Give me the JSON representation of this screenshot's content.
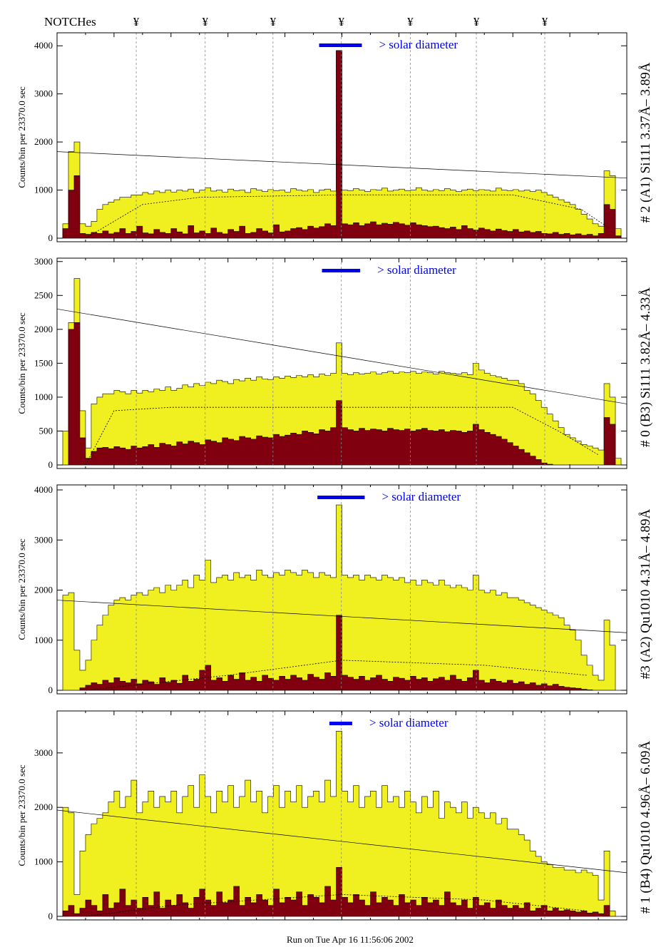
{
  "header": {
    "notches_label": "NOTCHes",
    "notch_symbol": "¥",
    "notch_count": 7
  },
  "footer": {
    "run_text": "Run on Tue Apr 16 11:56:06 2002"
  },
  "colors": {
    "total": "#f0f020",
    "signal": "#800010",
    "solar_bar": "#0000ee",
    "notch_line": "#888888"
  },
  "chart_data": [
    {
      "type": "bar",
      "title": "# 2 (A1) Si111  3.37Å– 3.89Å",
      "ylabel": "Counts/bin per  23370.0 sec",
      "ylim": [
        0,
        4270
      ],
      "yticks": [
        0,
        1000,
        2000,
        3000,
        4000
      ],
      "yticklabels": [
        "0",
        "1000",
        "2000",
        "3000",
        "4000"
      ],
      "solar_label": "> solar diameter",
      "solar_bar_bins": [
        46,
        53.5
      ],
      "notch_bins": [
        13.9,
        26,
        37.9,
        49.9,
        62,
        73.6,
        85.6
      ],
      "trend_line": [
        1800,
        1250
      ],
      "dotted_curve": [
        [
          5,
          0
        ],
        [
          15,
          700
        ],
        [
          25,
          850
        ],
        [
          50,
          900
        ],
        [
          80,
          900
        ],
        [
          92,
          600
        ],
        [
          97,
          200
        ]
      ],
      "series": [
        {
          "name": "total",
          "values": [
            0,
            300,
            1800,
            2000,
            300,
            250,
            350,
            600,
            700,
            750,
            800,
            850,
            850,
            900,
            900,
            950,
            920,
            980,
            950,
            1000,
            960,
            1000,
            980,
            1020,
            950,
            1000,
            1050,
            980,
            1000,
            960,
            1020,
            990,
            1000,
            950,
            1030,
            1000,
            970,
            1010,
            990,
            1000,
            960,
            1030,
            1000,
            980,
            1010,
            950,
            1000,
            1020,
            980,
            3900,
            1000,
            990,
            1030,
            1000,
            970,
            1010,
            1000,
            1040,
            980,
            1000,
            1020,
            990,
            1000,
            1050,
            1000,
            980,
            1010,
            990,
            1030,
            1000,
            970,
            1000,
            1020,
            990,
            1010,
            1000,
            980,
            1040,
            1000,
            990,
            1010,
            980,
            1000,
            970,
            1000,
            950,
            900,
            850,
            800,
            750,
            700,
            600,
            500,
            400,
            300,
            250,
            1400,
            1300,
            200,
            0
          ]
        },
        {
          "name": "signal",
          "values": [
            0,
            200,
            1000,
            1300,
            100,
            80,
            120,
            100,
            150,
            90,
            120,
            200,
            100,
            140,
            250,
            110,
            90,
            180,
            120,
            100,
            200,
            130,
            90,
            260,
            110,
            150,
            100,
            210,
            120,
            90,
            180,
            140,
            250,
            100,
            120,
            200,
            150,
            110,
            280,
            130,
            150,
            200,
            220,
            180,
            250,
            210,
            240,
            300,
            260,
            3900,
            300,
            280,
            320,
            260,
            300,
            340,
            280,
            310,
            290,
            330,
            300,
            270,
            320,
            280,
            260,
            240,
            250,
            220,
            200,
            230,
            180,
            260,
            200,
            170,
            210,
            180,
            150,
            190,
            160,
            140,
            180,
            130,
            150,
            120,
            140,
            100,
            90,
            120,
            80,
            100,
            70,
            90,
            60,
            80,
            50,
            100,
            700,
            600,
            50,
            0
          ]
        }
      ]
    },
    {
      "type": "bar",
      "title": "# 0 (B3) Si111  3.82Å– 4.33Å",
      "ylabel": "Counts/bin per  23370.0 sec",
      "ylim": [
        0,
        3050
      ],
      "yticks": [
        0,
        500,
        1000,
        1500,
        2000,
        2500,
        3000
      ],
      "yticklabels": [
        "0",
        "500",
        "1000",
        "1500",
        "2000",
        "2500",
        "3000"
      ],
      "solar_label": "> solar diameter",
      "solar_bar_bins": [
        46.5,
        53.2
      ],
      "notch_bins": [
        13.9,
        26,
        37.9,
        49.9,
        62,
        73.6,
        85.6
      ],
      "trend_line": [
        2300,
        900
      ],
      "dotted_curve": [
        [
          5,
          0
        ],
        [
          10,
          800
        ],
        [
          20,
          850
        ],
        [
          80,
          850
        ],
        [
          88,
          500
        ],
        [
          95,
          150
        ]
      ],
      "series": [
        {
          "name": "total",
          "values": [
            0,
            500,
            2100,
            2750,
            800,
            250,
            900,
            1000,
            1050,
            1050,
            1100,
            1080,
            1050,
            1100,
            1060,
            1100,
            1080,
            1120,
            1100,
            1150,
            1100,
            1130,
            1180,
            1150,
            1200,
            1170,
            1220,
            1200,
            1250,
            1230,
            1200,
            1260,
            1240,
            1280,
            1250,
            1300,
            1270,
            1260,
            1300,
            1280,
            1310,
            1290,
            1320,
            1300,
            1330,
            1300,
            1340,
            1320,
            1350,
            1800,
            1350,
            1330,
            1360,
            1340,
            1350,
            1370,
            1340,
            1360,
            1380,
            1350,
            1370,
            1360,
            1380,
            1350,
            1370,
            1360,
            1340,
            1380,
            1360,
            1350,
            1340,
            1360,
            1330,
            1500,
            1400,
            1350,
            1320,
            1300,
            1280,
            1250,
            1250,
            1200,
            1100,
            1050,
            950,
            850,
            750,
            650,
            550,
            450,
            400,
            350,
            300,
            280,
            250,
            220,
            1200,
            1000,
            100,
            0
          ]
        },
        {
          "name": "signal",
          "values": [
            0,
            0,
            2000,
            2100,
            400,
            100,
            200,
            250,
            260,
            240,
            270,
            250,
            230,
            280,
            250,
            270,
            300,
            260,
            320,
            300,
            280,
            340,
            310,
            350,
            330,
            300,
            370,
            350,
            330,
            400,
            380,
            360,
            420,
            400,
            380,
            430,
            410,
            400,
            450,
            420,
            440,
            470,
            450,
            500,
            480,
            460,
            520,
            500,
            550,
            950,
            550,
            520,
            500,
            540,
            510,
            530,
            520,
            500,
            540,
            520,
            510,
            530,
            500,
            520,
            540,
            510,
            500,
            520,
            490,
            510,
            500,
            480,
            500,
            600,
            520,
            480,
            450,
            420,
            380,
            330,
            280,
            230,
            180,
            130,
            80,
            30,
            10,
            0,
            0,
            0,
            0,
            0,
            0,
            0,
            0,
            0,
            700,
            600,
            0,
            0
          ]
        }
      ]
    },
    {
      "type": "bar",
      "title": "#3 (A2) Qu1010  4.31Å– 4.89Å",
      "ylabel": "Counts/bin per  23370.0 sec",
      "ylim": [
        0,
        4100
      ],
      "yticks": [
        0,
        1000,
        2000,
        3000,
        4000
      ],
      "yticklabels": [
        "0",
        "1000",
        "2000",
        "3000",
        "4000"
      ],
      "solar_label": "> solar diameter",
      "solar_bar_bins": [
        45.7,
        54
      ],
      "notch_bins": [
        13.9,
        26,
        37.9,
        49.9,
        62,
        73.6,
        85.6
      ],
      "trend_line": [
        1800,
        1150
      ],
      "dotted_curve": [
        [
          5,
          0
        ],
        [
          30,
          300
        ],
        [
          50,
          600
        ],
        [
          75,
          500
        ],
        [
          93,
          300
        ]
      ],
      "series": [
        {
          "name": "total",
          "values": [
            0,
            1900,
            1950,
            800,
            400,
            600,
            1000,
            1300,
            1500,
            1700,
            1800,
            1850,
            1800,
            1900,
            1950,
            1900,
            2000,
            2050,
            1950,
            2100,
            2000,
            2100,
            2200,
            2050,
            2300,
            2200,
            2600,
            2150,
            2250,
            2300,
            2200,
            2350,
            2250,
            2300,
            2200,
            2400,
            2300,
            2250,
            2350,
            2300,
            2400,
            2350,
            2300,
            2400,
            2350,
            2250,
            2350,
            2300,
            2250,
            3700,
            2300,
            2250,
            2300,
            2200,
            2300,
            2250,
            2200,
            2300,
            2250,
            2200,
            2250,
            2150,
            2200,
            2100,
            2200,
            2150,
            2100,
            2200,
            2100,
            2050,
            2100,
            2050,
            2000,
            2300,
            2000,
            1950,
            2000,
            1900,
            1950,
            1850,
            1850,
            1800,
            1750,
            1700,
            1650,
            1600,
            1550,
            1500,
            1450,
            1300,
            1200,
            1000,
            700,
            500,
            300,
            200,
            1400,
            900,
            0,
            0
          ]
        },
        {
          "name": "signal",
          "values": [
            0,
            0,
            0,
            0,
            50,
            100,
            150,
            120,
            200,
            150,
            250,
            180,
            150,
            220,
            130,
            200,
            170,
            120,
            250,
            160,
            200,
            140,
            300,
            180,
            220,
            400,
            500,
            200,
            250,
            180,
            300,
            220,
            350,
            200,
            260,
            180,
            300,
            240,
            200,
            280,
            220,
            300,
            250,
            200,
            320,
            260,
            220,
            350,
            280,
            1500,
            300,
            260,
            220,
            280,
            200,
            250,
            300,
            220,
            180,
            260,
            240,
            200,
            280,
            220,
            250,
            180,
            230,
            260,
            200,
            300,
            220,
            180,
            250,
            400,
            200,
            150,
            220,
            180,
            150,
            200,
            140,
            170,
            120,
            150,
            100,
            130,
            90,
            120,
            80,
            60,
            50,
            40,
            20,
            10,
            0,
            0,
            0,
            0,
            0,
            0
          ]
        }
      ]
    },
    {
      "type": "bar",
      "title": "# 1 (B4) Qu1010 4.96Å– 6.09Å",
      "ylabel": "Counts/bin per  23370.0 sec",
      "ylim": [
        0,
        3770
      ],
      "yticks": [
        0,
        1000,
        2000,
        3000
      ],
      "yticklabels": [
        "0",
        "1000",
        "2000",
        "3000"
      ],
      "solar_label": "> solar diameter",
      "solar_bar_bins": [
        47.8,
        51.8
      ],
      "notch_bins": [
        13.9,
        26,
        37.9,
        49.9,
        62,
        73.6,
        85.6
      ],
      "trend_line": [
        1950,
        800
      ],
      "dotted_curve": [
        [
          5,
          0
        ],
        [
          20,
          200
        ],
        [
          50,
          400
        ],
        [
          75,
          300
        ],
        [
          93,
          100
        ]
      ],
      "series": [
        {
          "name": "total",
          "values": [
            0,
            2000,
            1900,
            400,
            1200,
            1500,
            1700,
            1800,
            1900,
            2100,
            2300,
            2000,
            2200,
            2500,
            1900,
            2100,
            2300,
            2000,
            2200,
            2100,
            2300,
            1900,
            2200,
            2400,
            2000,
            2600,
            2200,
            1900,
            2300,
            2100,
            2400,
            2000,
            2200,
            2500,
            2100,
            2300,
            1900,
            2200,
            2400,
            2000,
            2300,
            2100,
            2400,
            2000,
            2200,
            2300,
            2100,
            2500,
            2200,
            3400,
            2300,
            2100,
            2400,
            2000,
            2200,
            2300,
            2000,
            2400,
            2100,
            2200,
            2000,
            2300,
            2100,
            1900,
            2200,
            2000,
            2300,
            1800,
            2100,
            2000,
            1900,
            2100,
            1800,
            2000,
            1900,
            1800,
            1900,
            1700,
            1800,
            1600,
            1600,
            1500,
            1400,
            1200,
            1100,
            1000,
            950,
            900,
            900,
            850,
            850,
            800,
            850,
            800,
            750,
            300,
            1200,
            100,
            0,
            0
          ]
        },
        {
          "name": "signal",
          "values": [
            0,
            100,
            200,
            50,
            150,
            300,
            200,
            100,
            400,
            150,
            250,
            500,
            200,
            300,
            150,
            350,
            200,
            450,
            150,
            300,
            200,
            400,
            250,
            150,
            350,
            500,
            300,
            200,
            450,
            250,
            300,
            550,
            200,
            350,
            250,
            400,
            300,
            200,
            500,
            250,
            350,
            300,
            450,
            200,
            400,
            350,
            250,
            550,
            300,
            900,
            350,
            250,
            400,
            300,
            200,
            450,
            250,
            350,
            300,
            200,
            400,
            250,
            300,
            200,
            350,
            250,
            300,
            200,
            450,
            250,
            200,
            300,
            150,
            350,
            200,
            250,
            150,
            300,
            200,
            150,
            200,
            150,
            250,
            100,
            150,
            200,
            100,
            150,
            100,
            120,
            100,
            80,
            100,
            60,
            80,
            50,
            200,
            0,
            0,
            0
          ]
        }
      ]
    }
  ]
}
